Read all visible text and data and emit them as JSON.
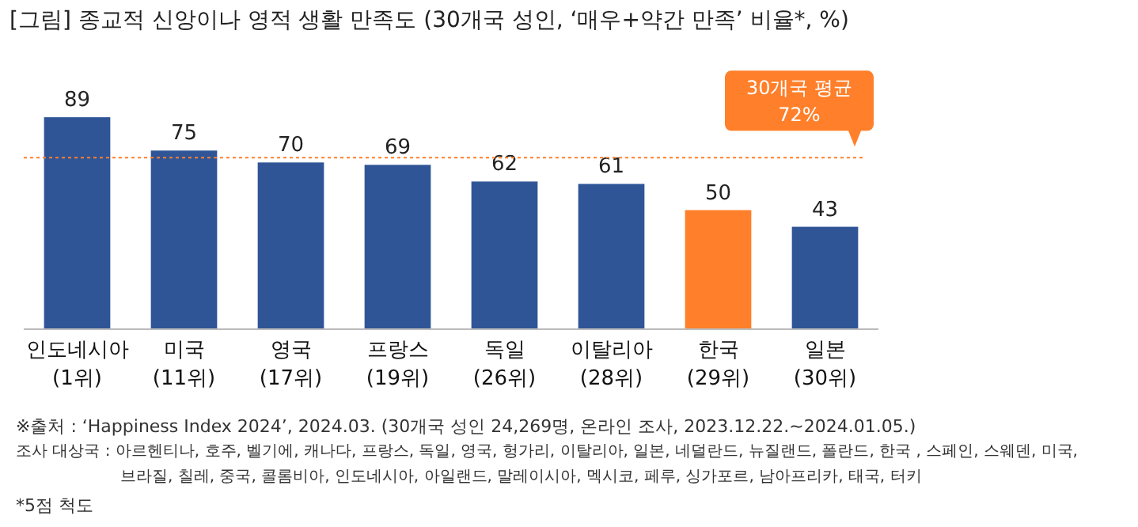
{
  "chart_data": {
    "type": "bar",
    "title": "[그림] 종교적 신앙이나 영적 생활 만족도 (30개국 성인, ‘매우+약간 만족’ 비율*, %)",
    "categories": [
      "인도네시아\n(1위)",
      "미국\n(11위)",
      "영국\n(17위)",
      "프랑스\n(19위)",
      "독일\n(26위)",
      "이탈리아\n(28위)",
      "한국\n(29위)",
      "일본\n(30위)"
    ],
    "values": [
      89,
      75,
      70,
      69,
      62,
      61,
      50,
      43
    ],
    "colors": [
      "#2f5597",
      "#2f5597",
      "#2f5597",
      "#2f5597",
      "#2f5597",
      "#2f5597",
      "#ff7f2a",
      "#2f5597"
    ],
    "data_labels": true,
    "ref_lines": [
      {
        "axis": "y",
        "value": 72,
        "label": "30개국 평균\n72%",
        "color": "#ff7f2a",
        "line_style": "dotted"
      }
    ],
    "annotations": [
      "※출처 : ‘Happiness Index 2024’, 2024.03. (30개국 성인 24,269명, 온라인 조사, 2023.12.22.~2024.01.05.)",
      "조사 대상국 : 아르헨티나, 호주, 벨기에, 캐나다, 프랑스, 독일, 영국, 헝가리, 이탈리아, 일본, 네덜란드, 뉴질랜드, 폴란드, 한국 , 스페인, 스웨덴, 미국, 브라질, 칠레, 중국, 콜롬비아, 인도네시아, 아일랜드, 말레이시아, 멕시코, 페루, 싱가포르, 남아프리카, 태국, 터키",
      "*5점 척도"
    ]
  }
}
